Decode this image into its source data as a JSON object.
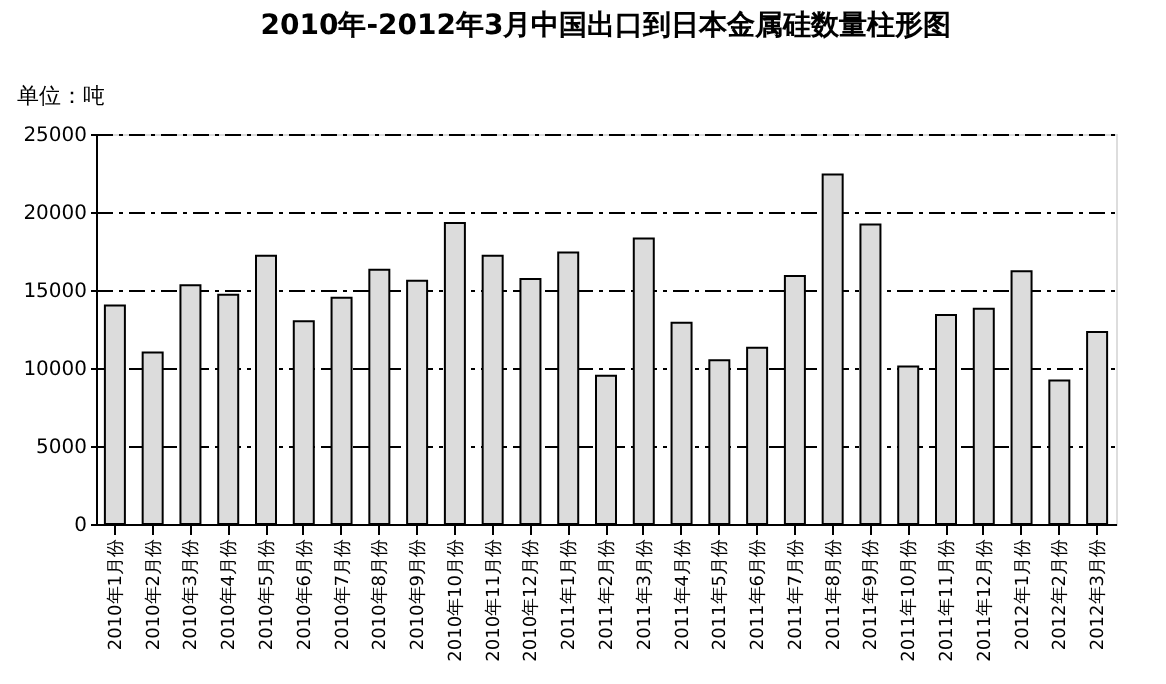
{
  "chart_data": {
    "type": "bar",
    "title": "2010年-2012年3月中国出口到日本金属硅数量柱形图",
    "ylabel": "单位：吨",
    "categories": [
      "2010年1月份",
      "2010年2月份",
      "2010年3月份",
      "2010年4月份",
      "2010年5月份",
      "2010年6月份",
      "2010年7月份",
      "2010年8月份",
      "2010年9月份",
      "2010年10月份",
      "2010年11月份",
      "2010年12月份",
      "2011年1月份",
      "2011年2月份",
      "2011年3月份",
      "2011年4月份",
      "2011年5月份",
      "2011年6月份",
      "2011年7月份",
      "2011年8月份",
      "2011年9月份",
      "2011年10月份",
      "2011年11月份",
      "2011年12月份",
      "2012年1月份",
      "2012年2月份",
      "2012年3月份"
    ],
    "values": [
      14000,
      11000,
      15300,
      14700,
      17200,
      13000,
      14500,
      16300,
      15600,
      19300,
      17200,
      15700,
      17400,
      9500,
      18300,
      12900,
      10500,
      11300,
      15900,
      22400,
      19200,
      10100,
      13400,
      13800,
      16200,
      9200,
      12300
    ],
    "color": "#dcdcdc",
    "ylim": [
      0,
      25000
    ],
    "yticks": [
      0,
      5000,
      10000,
      15000,
      20000,
      25000
    ],
    "grid": "y"
  }
}
